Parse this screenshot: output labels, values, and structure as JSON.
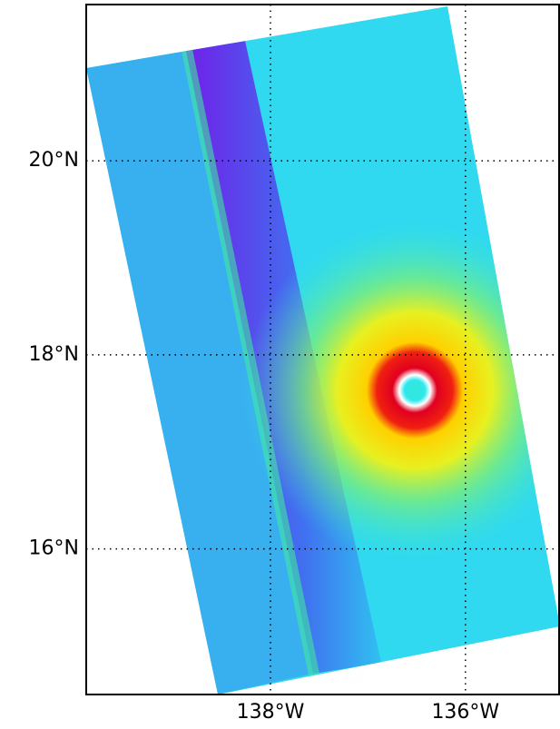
{
  "map": {
    "xlim": [
      -139.89,
      -135.03
    ],
    "ylim": [
      14.5,
      21.61
    ],
    "xticks": [
      {
        "value": -138,
        "label": "138°W"
      },
      {
        "value": -136,
        "label": "136°W"
      }
    ],
    "yticks": [
      {
        "value": 16,
        "label": "16°N"
      },
      {
        "value": 18,
        "label": "18°N"
      },
      {
        "value": 20,
        "label": "20°N"
      }
    ]
  }
}
